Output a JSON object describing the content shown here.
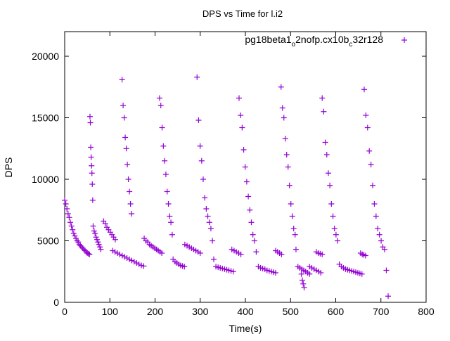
{
  "chart_data": {
    "type": "scatter",
    "title": "DPS vs Time for l.i2",
    "xlabel": "Time(s)",
    "ylabel": "DPS",
    "xlim": [
      0,
      800
    ],
    "ylim": [
      0,
      22000
    ],
    "xticks": [
      0,
      100,
      200,
      300,
      400,
      500,
      600,
      700,
      800
    ],
    "yticks": [
      0,
      5000,
      10000,
      15000,
      20000
    ],
    "grid": false,
    "legend": {
      "position": "top-right",
      "label_main": "pg18beta1",
      "sub1": "o",
      "mid": "2nofp.cx10b",
      "sub2": "c",
      "tail": "32r128"
    },
    "series_color": "#9400d3",
    "marker": "plus",
    "series_name": "pg18beta1_o2nofp.cx10b_c32r128",
    "segments": [
      {
        "t0": 0,
        "t1": 55,
        "dps": [
          8300,
          8000,
          7600,
          7200,
          6900,
          6500,
          6200,
          5900,
          5600,
          5400,
          5200,
          5000,
          4900,
          4700,
          4600,
          4500,
          4400,
          4300,
          4200,
          4100,
          4000,
          3950,
          3900
        ]
      },
      {
        "t0": 56,
        "t1": 62,
        "dps": [
          15100,
          14600,
          12600,
          11800,
          11100,
          10500,
          9600,
          8300
        ]
      },
      {
        "t0": 63,
        "t1": 80,
        "dps": [
          6200,
          5800,
          5600,
          5300,
          5100,
          4900,
          4700,
          4500,
          4300
        ]
      },
      {
        "t0": 86,
        "t1": 112,
        "dps": [
          6600,
          6400,
          6100,
          5900,
          5700,
          5500,
          5300,
          5100
        ]
      },
      {
        "t0": 106,
        "t1": 175,
        "dps": [
          4200,
          4100,
          4000,
          3900,
          3800,
          3700,
          3600,
          3500,
          3400,
          3300,
          3200,
          3100,
          3000,
          2950
        ]
      },
      {
        "t0": 127,
        "t1": 148,
        "dps": [
          18100,
          16000,
          15000,
          13400,
          12500,
          11200,
          10000,
          9000,
          8000,
          7200
        ]
      },
      {
        "t0": 176,
        "t1": 215,
        "dps": [
          5200,
          5000,
          4900,
          4700,
          4600,
          4500,
          4400,
          4300,
          4200,
          4100,
          4000
        ]
      },
      {
        "t0": 210,
        "t1": 238,
        "dps": [
          16600,
          16000,
          14200,
          12700,
          11500,
          10400,
          9000,
          8000,
          7000,
          6500,
          5500
        ]
      },
      {
        "t0": 240,
        "t1": 265,
        "dps": [
          3500,
          3300,
          3200,
          3100,
          3000,
          2950,
          2900
        ]
      },
      {
        "t0": 266,
        "t1": 300,
        "dps": [
          4700,
          4600,
          4500,
          4400,
          4300,
          4200,
          4100,
          4000
        ]
      },
      {
        "t0": 293,
        "t1": 327,
        "dps": [
          18300,
          14800,
          12700,
          11500,
          10000,
          8500,
          7600,
          7000,
          6500,
          6000,
          5000
        ]
      },
      {
        "t0": 330,
        "t1": 373,
        "dps": [
          3500,
          2900,
          2850,
          2800,
          2750,
          2700,
          2650,
          2600,
          2550,
          2500
        ]
      },
      {
        "t0": 370,
        "t1": 390,
        "dps": [
          4300,
          4200,
          4100,
          4000,
          3900
        ]
      },
      {
        "t0": 386,
        "t1": 420,
        "dps": [
          16600,
          15200,
          14200,
          12400,
          11000,
          9800,
          8600,
          7500,
          6500,
          5500,
          5000
        ]
      },
      {
        "t0": 424,
        "t1": 467,
        "dps": [
          4100,
          2900,
          2800,
          2750,
          2700,
          2600,
          2550,
          2500,
          2450,
          2400
        ]
      },
      {
        "t0": 467,
        "t1": 480,
        "dps": [
          4200,
          4100,
          4000,
          3900
        ]
      },
      {
        "t0": 479,
        "t1": 510,
        "dps": [
          17500,
          15800,
          15000,
          13300,
          12000,
          11000,
          9500,
          8000,
          7000,
          6000,
          5500
        ]
      },
      {
        "t0": 512,
        "t1": 542,
        "dps": [
          4300,
          2900,
          2800,
          2700,
          2600,
          2500,
          2400,
          2300
        ]
      },
      {
        "t0": 524,
        "t1": 530,
        "dps": [
          2300,
          1800,
          1500,
          1200
        ]
      },
      {
        "t0": 542,
        "t1": 567,
        "dps": [
          2900,
          2800,
          2700,
          2600,
          2500,
          2400
        ]
      },
      {
        "t0": 557,
        "t1": 570,
        "dps": [
          4100,
          4000,
          3950,
          3900
        ]
      },
      {
        "t0": 570,
        "t1": 604,
        "dps": [
          16600,
          15500,
          13000,
          12000,
          10500,
          9500,
          8000,
          7000,
          6000,
          5500,
          5000
        ]
      },
      {
        "t0": 608,
        "t1": 658,
        "dps": [
          3100,
          2900,
          2800,
          2700,
          2650,
          2600,
          2550,
          2500,
          2450,
          2400,
          2350,
          2300
        ]
      },
      {
        "t0": 655,
        "t1": 666,
        "dps": [
          4000,
          3900,
          3850,
          3800
        ]
      },
      {
        "t0": 663,
        "t1": 708,
        "dps": [
          17300,
          15200,
          14200,
          12300,
          11200,
          9500,
          8000,
          7000,
          6000,
          5500,
          5000,
          4500,
          4300
        ]
      },
      {
        "t0": 712,
        "t1": 716,
        "dps": [
          2600,
          500
        ]
      }
    ]
  }
}
